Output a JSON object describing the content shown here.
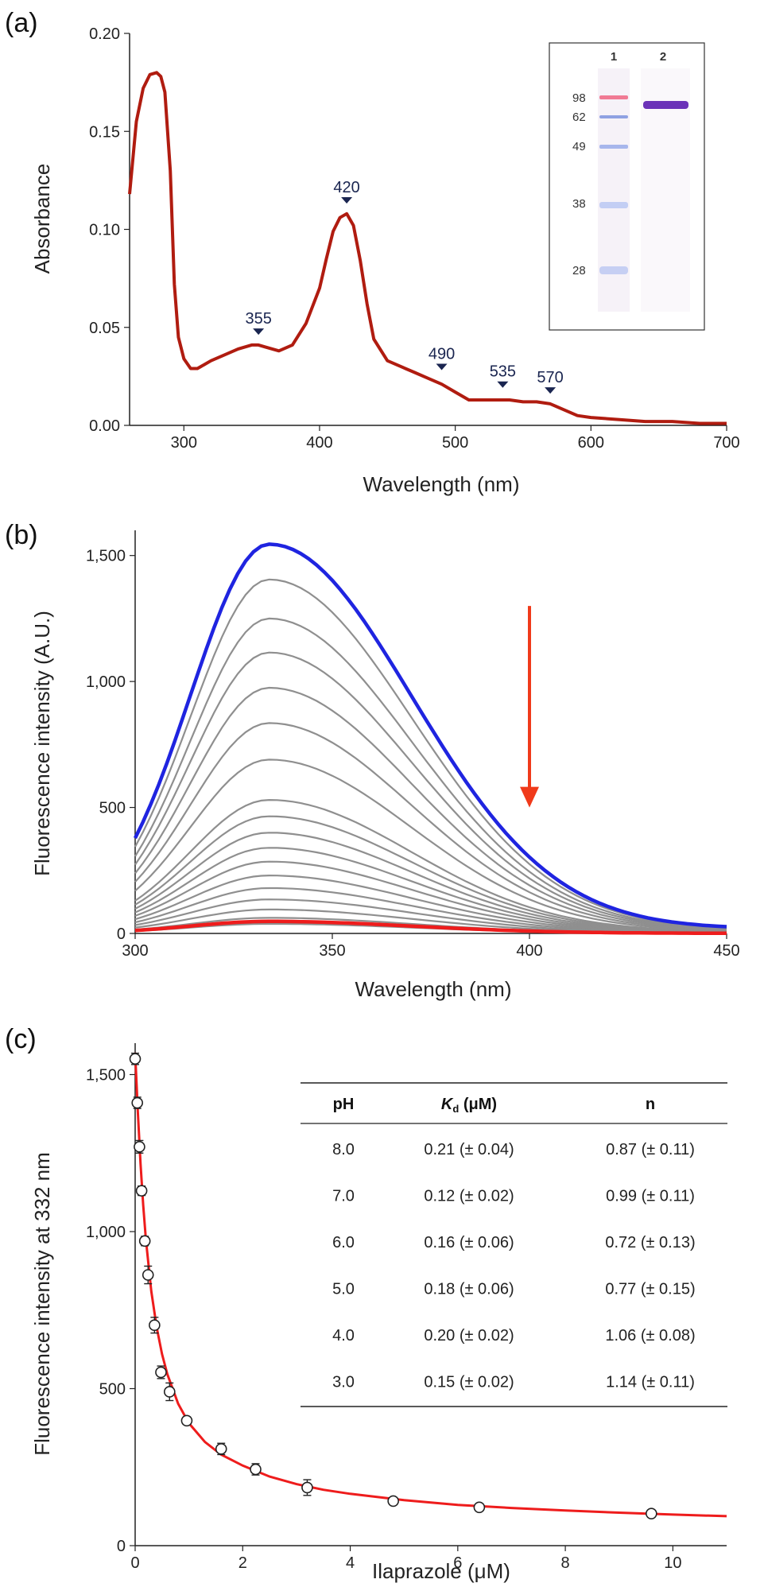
{
  "panels": {
    "a": "(a)",
    "b": "(b)",
    "c": "(c)"
  },
  "chart_data": [
    {
      "type": "line",
      "panel": "a",
      "xlabel": "Wavelength (nm)",
      "ylabel": "Absorbance",
      "xlim": [
        260,
        700
      ],
      "ylim": [
        0,
        0.2
      ],
      "xticks": [
        300,
        400,
        500,
        600,
        700
      ],
      "xtick_labels": [
        "300",
        "400",
        "500",
        "600",
        "700"
      ],
      "yticks": [
        0,
        0.05,
        0.1,
        0.15,
        0.2
      ],
      "ytick_labels": [
        "0.00",
        "0.05",
        "0.10",
        "0.15",
        "0.20"
      ],
      "color": "#b01c10",
      "series": [
        {
          "x": [
            260,
            265,
            270,
            275,
            280,
            283,
            286,
            290,
            293,
            296,
            300,
            305,
            310,
            315,
            320,
            330,
            340,
            350,
            355,
            360,
            370,
            380,
            390,
            400,
            405,
            410,
            415,
            420,
            425,
            430,
            435,
            440,
            450,
            460,
            470,
            480,
            490,
            500,
            510,
            520,
            530,
            535,
            540,
            550,
            560,
            570,
            580,
            590,
            600,
            620,
            640,
            660,
            680,
            700
          ],
          "y": [
            0.118,
            0.155,
            0.172,
            0.179,
            0.18,
            0.178,
            0.17,
            0.13,
            0.072,
            0.045,
            0.034,
            0.029,
            0.029,
            0.031,
            0.033,
            0.036,
            0.039,
            0.041,
            0.041,
            0.04,
            0.038,
            0.041,
            0.052,
            0.07,
            0.085,
            0.099,
            0.106,
            0.108,
            0.102,
            0.084,
            0.062,
            0.044,
            0.033,
            0.03,
            0.027,
            0.024,
            0.021,
            0.017,
            0.013,
            0.013,
            0.013,
            0.013,
            0.013,
            0.012,
            0.012,
            0.011,
            0.008,
            0.005,
            0.004,
            0.003,
            0.002,
            0.002,
            0.001,
            0.001
          ]
        }
      ],
      "annotations": [
        {
          "label": "355",
          "x": 355,
          "y": 0.047
        },
        {
          "label": "420",
          "x": 420,
          "y": 0.114
        },
        {
          "label": "490",
          "x": 490,
          "y": 0.029
        },
        {
          "label": "535",
          "x": 535,
          "y": 0.02
        },
        {
          "label": "570",
          "x": 570,
          "y": 0.017
        }
      ],
      "inset_gel": {
        "lanes": [
          "1",
          "2"
        ],
        "markers": [
          "98",
          "62",
          "49",
          "38",
          "28"
        ]
      }
    },
    {
      "type": "line",
      "panel": "b",
      "xlabel": "Wavelength (nm)",
      "ylabel": "Fluorescence intensity (A.U.)",
      "xlim": [
        300,
        450
      ],
      "ylim": [
        0,
        1600
      ],
      "xticks": [
        300,
        350,
        400,
        450
      ],
      "xtick_labels": [
        "300",
        "350",
        "400",
        "450"
      ],
      "yticks": [
        0,
        500,
        1000,
        1500
      ],
      "ytick_labels": [
        "0",
        "500",
        "1,000",
        "1,500"
      ],
      "peak_nm": 334,
      "peak_intensities": [
        1545,
        1405,
        1250,
        1115,
        975,
        835,
        690,
        530,
        465,
        400,
        340,
        285,
        230,
        180,
        135,
        95,
        62,
        38,
        48
      ],
      "series_colors": [
        "#1f24e0",
        "#8f8f8f",
        "#8f8f8f",
        "#8f8f8f",
        "#8f8f8f",
        "#8f8f8f",
        "#8f8f8f",
        "#8f8f8f",
        "#8f8f8f",
        "#8f8f8f",
        "#8f8f8f",
        "#8f8f8f",
        "#8f8f8f",
        "#8f8f8f",
        "#8f8f8f",
        "#8f8f8f",
        "#8f8f8f",
        "#8f8f8f",
        "#ee1c1c"
      ],
      "arrow": {
        "x": 400,
        "y_from": 1300,
        "y_to": 500,
        "color": "#f03a1a"
      }
    },
    {
      "type": "scatter",
      "panel": "c",
      "xlabel_text": "Ilaprazole (",
      "xlabel_mu": "μ",
      "xlabel_end": "M)",
      "ylabel": "Fluorescence intensity at 332 nm",
      "xlim": [
        0,
        11
      ],
      "ylim": [
        0,
        1600
      ],
      "xticks": [
        0,
        2,
        4,
        6,
        8,
        10
      ],
      "xtick_labels": [
        "0",
        "2",
        "4",
        "6",
        "8",
        "10"
      ],
      "yticks": [
        0,
        500,
        1000,
        1500
      ],
      "ytick_labels": [
        "0",
        "500",
        "1,000",
        "1,500"
      ],
      "points": [
        {
          "x": 0.0,
          "y": 1550,
          "err": 18
        },
        {
          "x": 0.04,
          "y": 1410,
          "err": 18
        },
        {
          "x": 0.08,
          "y": 1270,
          "err": 20
        },
        {
          "x": 0.12,
          "y": 1130,
          "err": 15
        },
        {
          "x": 0.18,
          "y": 970,
          "err": 15
        },
        {
          "x": 0.24,
          "y": 862,
          "err": 28
        },
        {
          "x": 0.36,
          "y": 702,
          "err": 25
        },
        {
          "x": 0.48,
          "y": 552,
          "err": 20
        },
        {
          "x": 0.64,
          "y": 490,
          "err": 28
        },
        {
          "x": 0.96,
          "y": 398,
          "err": 12
        },
        {
          "x": 1.6,
          "y": 308,
          "err": 18
        },
        {
          "x": 2.24,
          "y": 243,
          "err": 18
        },
        {
          "x": 3.2,
          "y": 185,
          "err": 25
        },
        {
          "x": 4.8,
          "y": 142,
          "err": 8
        },
        {
          "x": 6.4,
          "y": 122,
          "err": 8
        },
        {
          "x": 9.6,
          "y": 102,
          "err": 8
        }
      ],
      "fit": {
        "color": "#ee1c1c",
        "x": [
          0,
          0.05,
          0.1,
          0.15,
          0.2,
          0.3,
          0.4,
          0.5,
          0.6,
          0.8,
          1.0,
          1.3,
          1.6,
          2.0,
          2.5,
          3.0,
          3.5,
          4,
          5,
          6,
          7,
          8,
          9,
          10,
          11
        ],
        "y": [
          1570,
          1380,
          1215,
          1085,
          975,
          810,
          695,
          610,
          545,
          452,
          390,
          330,
          290,
          255,
          220,
          196,
          178,
          165,
          145,
          130,
          120,
          112,
          105,
          99,
          94
        ]
      },
      "table": {
        "columns": [
          "pH",
          "K",
          "d",
          " (μM)",
          "n"
        ],
        "rows": [
          [
            "8.0",
            "0.21 (± 0.04)",
            "0.87 (± 0.11)"
          ],
          [
            "7.0",
            "0.12 (± 0.02)",
            "0.99 (± 0.11)"
          ],
          [
            "6.0",
            "0.16 (± 0.06)",
            "0.72 (± 0.13)"
          ],
          [
            "5.0",
            "0.18 (± 0.06)",
            "0.77 (± 0.15)"
          ],
          [
            "4.0",
            "0.20 (± 0.02)",
            "1.06 (± 0.08)"
          ],
          [
            "3.0",
            "0.15 (± 0.02)",
            "1.14 (± 0.11)"
          ]
        ]
      }
    }
  ]
}
